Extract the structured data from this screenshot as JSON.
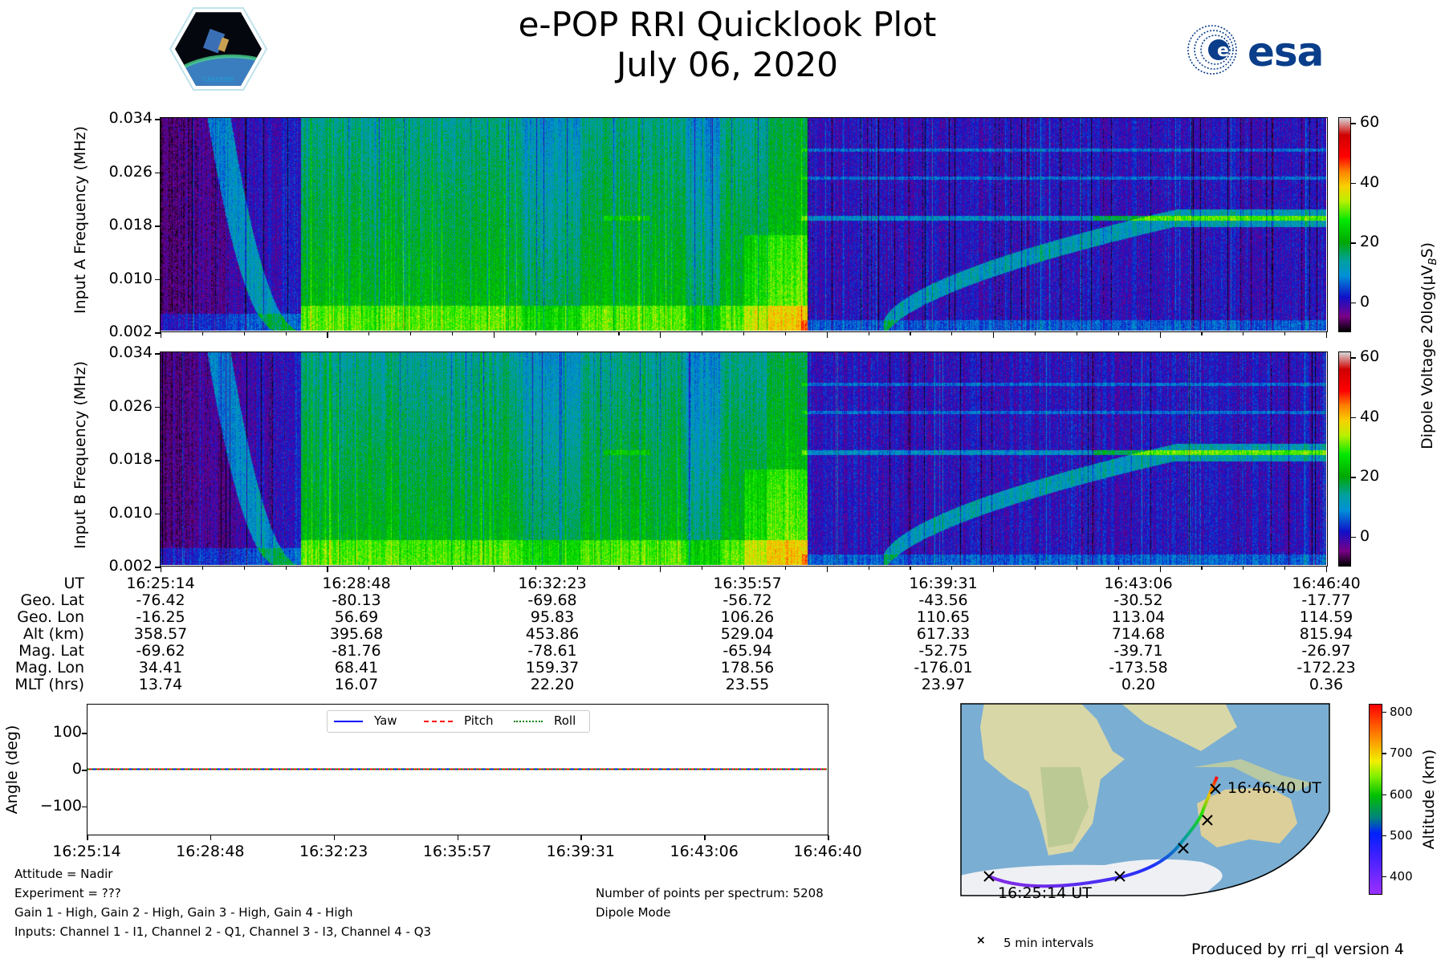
{
  "header": {
    "title": "e-POP RRI Quicklook Plot",
    "date": "July 06, 2020"
  },
  "logos": {
    "left": "CASSIOPE",
    "right": "esa"
  },
  "chart_data": [
    {
      "type": "heatmap",
      "title": "Input A spectrogram",
      "ylabel": "Input A Frequency (MHz)",
      "yticks": [
        "0.002",
        "0.010",
        "0.018",
        "0.026",
        "0.034"
      ],
      "ylim": [
        0.002,
        0.034
      ],
      "x_range": [
        "16:25:14",
        "16:46:40"
      ]
    },
    {
      "type": "heatmap",
      "title": "Input B spectrogram",
      "ylabel": "Input B Frequency (MHz)",
      "yticks": [
        "0.002",
        "0.010",
        "0.018",
        "0.026",
        "0.034"
      ],
      "ylim": [
        0.002,
        0.034
      ],
      "x_range": [
        "16:25:14",
        "16:46:40"
      ]
    },
    {
      "type": "colorbar",
      "label": "Dipole Voltage 20log(μV",
      "label_sub": "B",
      "label_end": "S)",
      "ticks": [
        "60",
        "40",
        "20",
        "0"
      ],
      "range": [
        -10,
        62
      ]
    },
    {
      "type": "line",
      "ylabel": "Angle (deg)",
      "yticks": [
        "100",
        "0",
        "−100"
      ],
      "ylim": [
        -180,
        180
      ],
      "xticks": [
        "16:25:14",
        "16:28:48",
        "16:32:23",
        "16:35:57",
        "16:39:31",
        "16:43:06",
        "16:46:40"
      ],
      "series": [
        {
          "name": "Yaw",
          "color": "#0000ff",
          "style": "solid",
          "values": [
            0,
            0,
            0,
            0,
            0,
            0,
            0
          ]
        },
        {
          "name": "Pitch",
          "color": "#ff0000",
          "style": "dashed",
          "values": [
            0,
            0,
            0,
            0,
            0,
            0,
            0
          ]
        },
        {
          "name": "Roll",
          "color": "#008000",
          "style": "dotted",
          "values": [
            0,
            0,
            0,
            0,
            0,
            0,
            0
          ]
        }
      ]
    },
    {
      "type": "map",
      "start_label": "16:25:14 UT",
      "end_label": "16:46:40 UT",
      "legend": "5 min intervals",
      "colorbar_label": "Altitude (km)",
      "colorbar_ticks": [
        "800",
        "700",
        "600",
        "500",
        "400"
      ],
      "altitude_range": [
        355,
        820
      ]
    }
  ],
  "ephemeris": {
    "labels": [
      "UT",
      "Geo. Lat",
      "Geo. Lon",
      "Alt (km)",
      "Mag. Lat",
      "Mag. Lon",
      "MLT (hrs)"
    ],
    "columns": [
      [
        "16:25:14",
        "-76.42",
        "-16.25",
        "358.57",
        "-69.62",
        "34.41",
        "13.74"
      ],
      [
        "16:28:48",
        "-80.13",
        "56.69",
        "395.68",
        "-81.76",
        "68.41",
        "16.07"
      ],
      [
        "16:32:23",
        "-69.68",
        "95.83",
        "453.86",
        "-78.61",
        "159.37",
        "22.20"
      ],
      [
        "16:35:57",
        "-56.72",
        "106.26",
        "529.04",
        "-65.94",
        "178.56",
        "23.55"
      ],
      [
        "16:39:31",
        "-43.56",
        "110.65",
        "617.33",
        "-52.75",
        "-176.01",
        "23.97"
      ],
      [
        "16:43:06",
        "-30.52",
        "113.04",
        "714.68",
        "-39.71",
        "-173.58",
        "0.20"
      ],
      [
        "16:46:40",
        "-17.77",
        "114.59",
        "815.94",
        "-26.97",
        "-172.23",
        "0.36"
      ]
    ]
  },
  "notes": {
    "left": [
      "Attitude = Nadir",
      "Experiment = ???",
      "Gain 1 - High, Gain 2 - High, Gain 3 - High, Gain 4 - High",
      "Inputs: Channel 1 - I1, Channel 2 - Q1, Channel 3 - I3, Channel 4 - Q3"
    ],
    "right": [
      "Number of points per spectrum: 5208",
      "Dipole Mode"
    ],
    "footer": "Produced by rri_ql version 4"
  }
}
